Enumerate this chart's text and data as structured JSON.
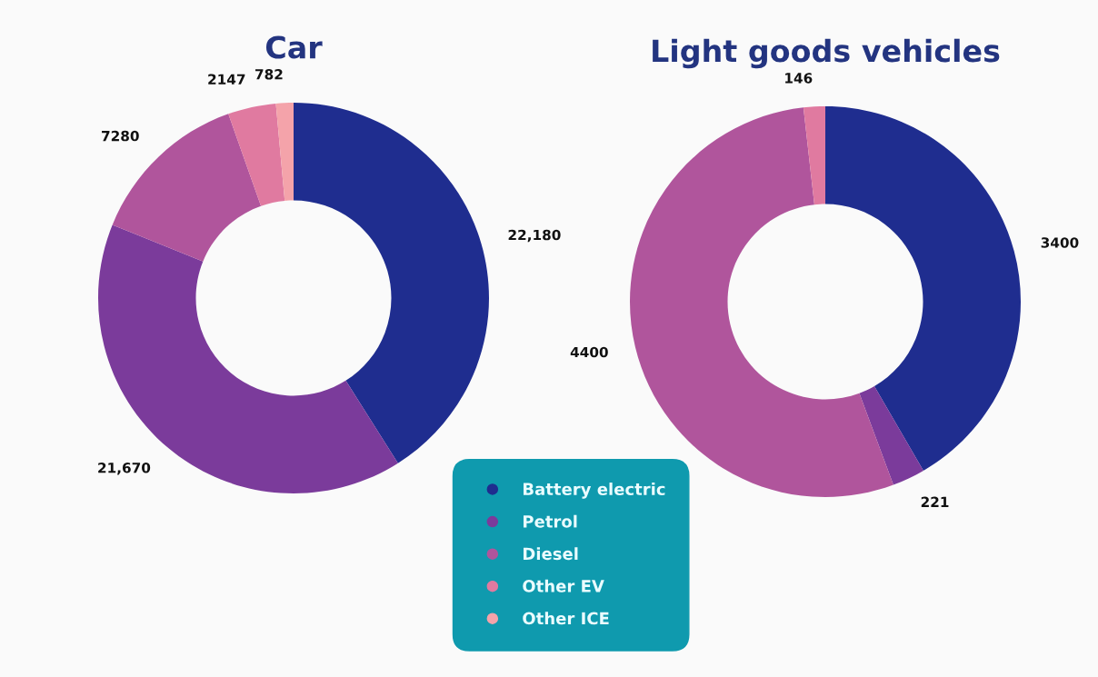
{
  "chart_data": [
    {
      "type": "donut",
      "title": "Car",
      "categories": [
        "Battery electric",
        "Petrol",
        "Diesel",
        "Other EV",
        "Other ICE"
      ],
      "values": [
        22180,
        21670,
        7280,
        2147,
        782
      ],
      "value_labels": [
        "22,180",
        "21,670",
        "7280",
        "2147",
        "782"
      ],
      "colors": [
        "#1f2d8f",
        "#7b3b9b",
        "#b0559c",
        "#e07aa0",
        "#f4a3aa"
      ],
      "legend": "bottom"
    },
    {
      "type": "donut",
      "title": "Light goods vehicles",
      "categories": [
        null,
        null,
        null,
        null
      ],
      "values": [
        3400,
        221,
        4400,
        146
      ],
      "value_labels": [
        "3400",
        "221",
        "4400",
        "146"
      ],
      "colors": [
        "#1f2d8f",
        "#7b3b9b",
        "#b0559c",
        "#e07aa0"
      ]
    }
  ]
}
